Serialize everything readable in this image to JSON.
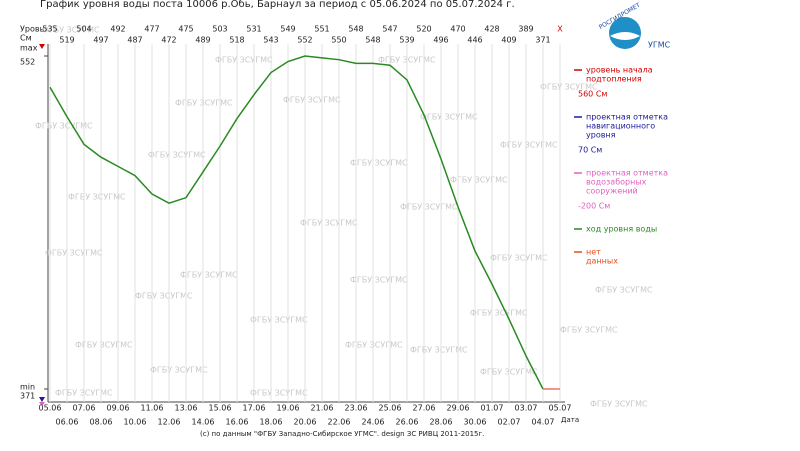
{
  "chart_data": {
    "type": "line",
    "title": "График уровня воды поста 10006 р.Обь, Барнаул за период с 05.06.2024 по 05.07.2024 г.",
    "y_label": [
      "Уровь",
      "См"
    ],
    "x_label": "Дата",
    "categories": [
      "05.06",
      "06.06",
      "07.06",
      "08.06",
      "09.06",
      "10.06",
      "11.06",
      "12.06",
      "13.06",
      "14.06",
      "15.06",
      "16.06",
      "17.06",
      "18.06",
      "19.06",
      "20.06",
      "21.06",
      "22.06",
      "23.06",
      "24.06",
      "25.06",
      "26.06",
      "27.06",
      "28.06",
      "29.06",
      "30.06",
      "01.07",
      "02.07",
      "03.07",
      "04.07",
      "05.07"
    ],
    "series": [
      {
        "name": "ход уровня воды",
        "color": "#2a8a22",
        "values": [
          535,
          519,
          504,
          497,
          492,
          487,
          477,
          472,
          475,
          489,
          503,
          518,
          531,
          543,
          549,
          552,
          551,
          550,
          548,
          548,
          547,
          539,
          520,
          496,
          470,
          446,
          428,
          409,
          389,
          371,
          null
        ],
        "value_labels": [
          "535",
          "519",
          "504",
          "497",
          "492",
          "487",
          "477",
          "472",
          "475",
          "489",
          "503",
          "518",
          "531",
          "543",
          "549",
          "552",
          "551",
          "550",
          "548",
          "548",
          "547",
          "539",
          "520",
          "496",
          "470",
          "446",
          "428",
          "409",
          "389",
          "371",
          "X"
        ]
      }
    ],
    "ylim": [
      371,
      552
    ],
    "yticks": [
      {
        "value": 552,
        "label": "552"
      },
      {
        "value": 371,
        "label": "371"
      }
    ],
    "ytick_names": [
      "max",
      "min"
    ],
    "legend": [
      {
        "label": [
          "уровень начала",
          "подтопления"
        ],
        "value": "560 См",
        "color": "#d40000"
      },
      {
        "label": [
          "проектная отметка",
          "навигационного",
          "уровня"
        ],
        "value": "70 См",
        "color": "#1a1a9a"
      },
      {
        "label": [
          "проектная отметка",
          "водозаборных",
          "сооружений"
        ],
        "value": "-200 См",
        "color": "#e060c0"
      },
      {
        "label": [
          "ход уровня воды"
        ],
        "color": "#2a8a22"
      },
      {
        "label": [
          "нет",
          "данных"
        ],
        "color": "#e05020"
      }
    ],
    "logo": [
      "РОСГИДРОМЕТ",
      "УГМС"
    ],
    "watermark": "ФГБУ ЗСУГМС",
    "footer": "(c) по данным \"ФГБУ Западно-Сибирское УГМС\". design ЗС РИВЦ 2011-2015г."
  }
}
